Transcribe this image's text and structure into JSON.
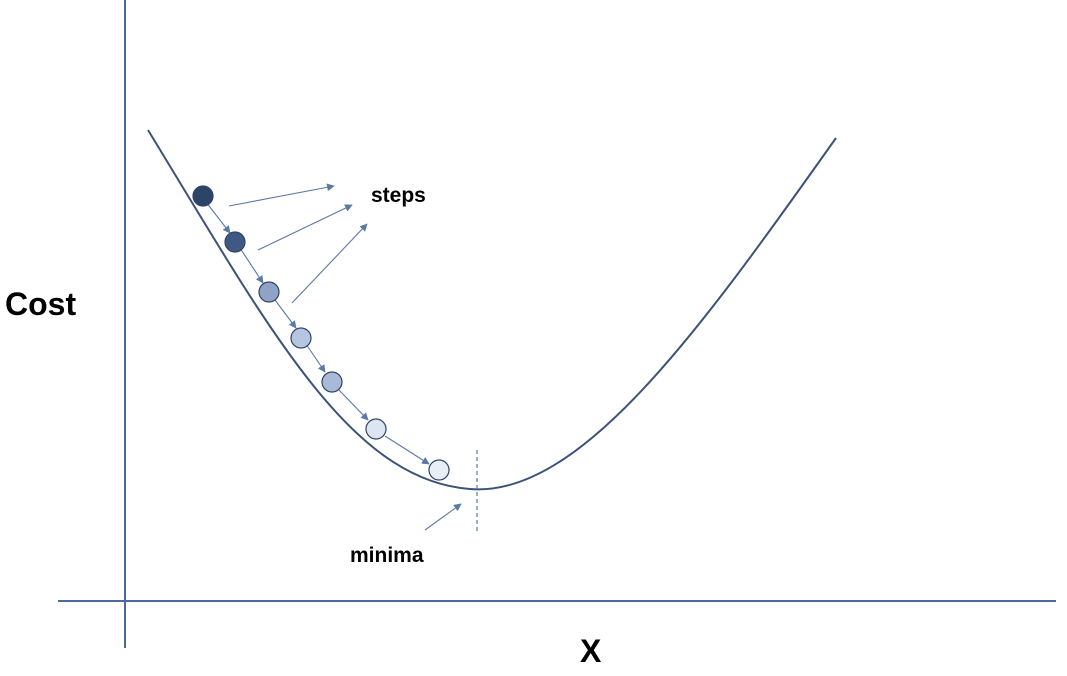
{
  "labels": {
    "y_axis": "Cost",
    "x_axis": "X",
    "steps": "steps",
    "minima": "minima"
  },
  "colors": {
    "axis": "#4a6a9a",
    "curve": "#3b5379",
    "arrow": "#5b79a6",
    "dashed_marker": "#5b79a6",
    "ball_outline": "#2e4466",
    "ball_fills": [
      "#2c4466",
      "#3e5a84",
      "#8fa3c7",
      "#b7c6e0",
      "#a9bad8",
      "#dde5f2",
      "#e9eef7"
    ]
  },
  "descent": {
    "step_count": 7
  }
}
